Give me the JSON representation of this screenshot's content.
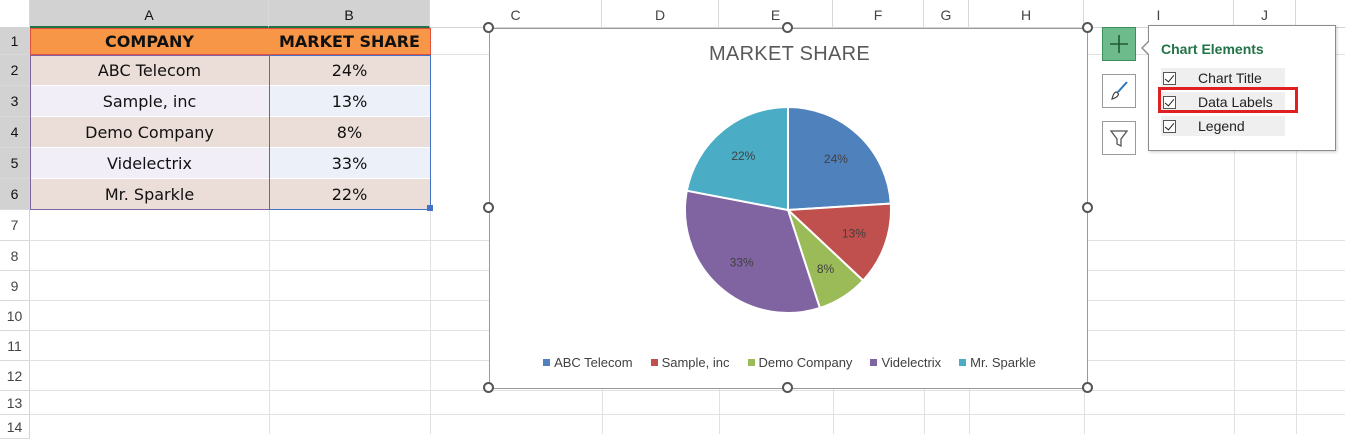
{
  "columns": [
    "A",
    "B",
    "C",
    "D",
    "E",
    "F",
    "G",
    "H",
    "I",
    "J"
  ],
  "rows": [
    "1",
    "2",
    "3",
    "4",
    "5",
    "6",
    "7",
    "8",
    "9",
    "10",
    "11",
    "12",
    "13",
    "14"
  ],
  "table": {
    "headers": [
      "COMPANY",
      "MARKET SHARE"
    ],
    "rows": [
      {
        "company": "ABC Telecom",
        "share": "24%"
      },
      {
        "company": "Sample, inc",
        "share": "13%"
      },
      {
        "company": "Demo Company",
        "share": "8%"
      },
      {
        "company": "Videlectrix",
        "share": "33%"
      },
      {
        "company": "Mr. Sparkle",
        "share": "22%"
      }
    ]
  },
  "chart_data": {
    "type": "pie",
    "title": "MARKET SHARE",
    "categories": [
      "ABC Telecom",
      "Sample, inc",
      "Demo Company",
      "Videlectrix",
      "Mr. Sparkle"
    ],
    "values": [
      24,
      13,
      8,
      33,
      22
    ],
    "data_labels": [
      "24%",
      "13%",
      "8%",
      "33%",
      "22%"
    ],
    "colors": [
      "#4f81bd",
      "#c0504d",
      "#9bbb59",
      "#8064a2",
      "#4bacc6"
    ],
    "legend_position": "bottom"
  },
  "side_buttons": {
    "plus": "plus-icon",
    "style": "paintbrush-icon",
    "filter": "filter-icon"
  },
  "flyout": {
    "title": "Chart Elements",
    "options": [
      {
        "label": "Chart Title",
        "checked": true
      },
      {
        "label": "Data Labels",
        "checked": true
      },
      {
        "label": "Legend",
        "checked": true
      }
    ]
  },
  "accent_colors": {
    "header_fill": "#f79646",
    "excel_green": "#217346",
    "highlight": "#e02020"
  }
}
